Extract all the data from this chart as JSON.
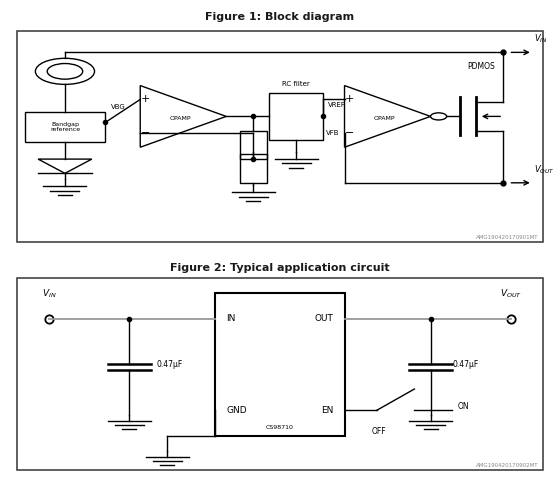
{
  "fig1_title": "Figure 1: Block diagram",
  "fig2_title": "Figure 2: Typical application circuit",
  "fig1_watermark": "AMG190420170901MT",
  "fig2_watermark": "AMG190420170902MT",
  "fig2_chip_label": "CS98710",
  "background": "#ffffff",
  "line_color": "#000000",
  "title_color": "#000000"
}
